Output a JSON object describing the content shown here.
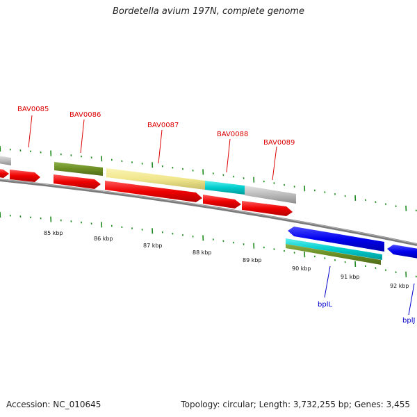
{
  "title": "Bordetella avium 197N, complete genome",
  "footer": {
    "accession": "Accession: NC_010645",
    "summary": "Topology: circular; Length: 3,732,255 bp; Genes: 3,455"
  },
  "colors": {
    "backbone": "#7a7a7a",
    "tick": "#1c8a1c",
    "gene_label_red": "#dd0000",
    "gene_label_blue": "#0000cc",
    "red_arrow": "#ee0000",
    "blue_arrow": "#0000ee",
    "olive": "#6b8e23",
    "khaki": "#f0e68c",
    "cyan": "#00cccc",
    "grey": "#bbbbbb"
  },
  "scale": {
    "labels": [
      "85 kbp",
      "86 kbp",
      "87 kbp",
      "88 kbp",
      "89 kbp",
      "90 kbp",
      "91 kbp",
      "92 kbp"
    ]
  },
  "gene_labels": {
    "red": [
      "BAV0085",
      "BAV0086",
      "BAV0087",
      "BAV0088",
      "BAV0089"
    ],
    "blue": [
      "bplL",
      "bplJ"
    ]
  }
}
